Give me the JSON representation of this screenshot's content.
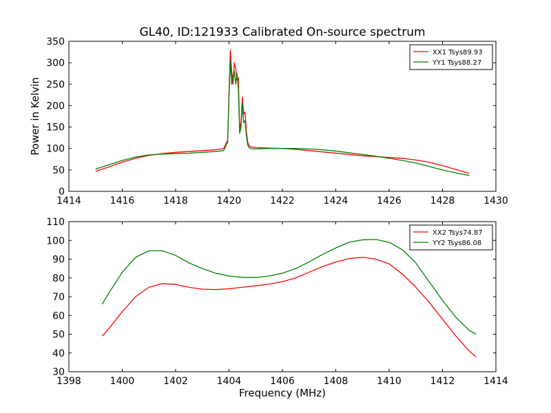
{
  "title": "GL40, ID:121933 Calibrated On-source spectrum",
  "chart_data": [
    {
      "type": "line",
      "title": "GL40, ID:121933 Calibrated On-source spectrum",
      "xlabel": "",
      "ylabel": "Power in Kelvin",
      "xlim": [
        1414,
        1430
      ],
      "ylim": [
        0,
        350
      ],
      "xticks": [
        1414,
        1416,
        1418,
        1420,
        1422,
        1424,
        1426,
        1428,
        1430
      ],
      "yticks": [
        0,
        50,
        100,
        150,
        200,
        250,
        300,
        350
      ],
      "legend_position": "top-right",
      "grid": false,
      "series": [
        {
          "name": "XX1 Tsys89.93",
          "color": "#ff0000",
          "x": [
            1415.0,
            1415.5,
            1416.0,
            1416.5,
            1417.0,
            1417.5,
            1418.0,
            1418.5,
            1419.0,
            1419.5,
            1419.8,
            1419.95,
            1420.0,
            1420.05,
            1420.1,
            1420.15,
            1420.2,
            1420.25,
            1420.3,
            1420.35,
            1420.4,
            1420.45,
            1420.5,
            1420.55,
            1420.6,
            1420.65,
            1420.7,
            1420.75,
            1420.8,
            1420.9,
            1421.0,
            1421.5,
            1422.0,
            1422.5,
            1423.0,
            1423.5,
            1424.0,
            1424.5,
            1425.0,
            1425.5,
            1426.0,
            1426.5,
            1427.0,
            1427.5,
            1428.0,
            1428.5,
            1429.0
          ],
          "y": [
            47,
            57,
            68,
            77,
            84,
            88,
            91,
            93,
            95,
            97,
            100,
            120,
            230,
            330,
            280,
            250,
            300,
            285,
            260,
            265,
            145,
            160,
            220,
            180,
            185,
            140,
            115,
            107,
            104,
            103,
            102,
            101,
            100,
            98,
            95,
            92,
            89,
            86,
            83,
            81,
            79,
            77,
            73,
            68,
            60,
            51,
            42
          ]
        },
        {
          "name": "YY1 Tsys88.27",
          "color": "#008000",
          "x": [
            1415.0,
            1415.5,
            1416.0,
            1416.5,
            1417.0,
            1417.5,
            1418.0,
            1418.5,
            1419.0,
            1419.5,
            1419.8,
            1419.95,
            1420.0,
            1420.05,
            1420.1,
            1420.15,
            1420.2,
            1420.25,
            1420.3,
            1420.35,
            1420.4,
            1420.45,
            1420.5,
            1420.55,
            1420.6,
            1420.65,
            1420.7,
            1420.75,
            1420.8,
            1420.9,
            1421.0,
            1421.5,
            1422.0,
            1422.5,
            1423.0,
            1423.5,
            1424.0,
            1424.5,
            1425.0,
            1425.5,
            1426.0,
            1426.5,
            1427.0,
            1427.5,
            1428.0,
            1428.5,
            1429.0
          ],
          "y": [
            52,
            62,
            72,
            80,
            85,
            87,
            88,
            89,
            91,
            93,
            95,
            115,
            220,
            305,
            250,
            270,
            280,
            250,
            275,
            240,
            135,
            150,
            205,
            160,
            165,
            130,
            108,
            102,
            100,
            99,
            99,
            100,
            100,
            100,
            99,
            97,
            94,
            90,
            86,
            82,
            77,
            72,
            66,
            58,
            50,
            43,
            37
          ]
        }
      ]
    },
    {
      "type": "line",
      "title": "",
      "xlabel": "Frequency (MHz)",
      "ylabel": "",
      "xlim": [
        1398,
        1414
      ],
      "ylim": [
        30,
        110
      ],
      "xticks": [
        1398,
        1400,
        1402,
        1404,
        1406,
        1408,
        1410,
        1412,
        1414
      ],
      "yticks": [
        30,
        40,
        50,
        60,
        70,
        80,
        90,
        100,
        110
      ],
      "legend_position": "top-right",
      "grid": false,
      "series": [
        {
          "name": "XX2 Tsys74.87",
          "color": "#ff0000",
          "x": [
            1399.25,
            1399.5,
            1400.0,
            1400.5,
            1401.0,
            1401.5,
            1402.0,
            1402.5,
            1403.0,
            1403.5,
            1404.0,
            1404.5,
            1405.0,
            1405.5,
            1406.0,
            1406.5,
            1407.0,
            1407.5,
            1408.0,
            1408.5,
            1409.0,
            1409.5,
            1410.0,
            1410.5,
            1411.0,
            1411.5,
            1412.0,
            1412.5,
            1413.0,
            1413.25
          ],
          "y": [
            49,
            53,
            62,
            70,
            75,
            77,
            76.5,
            75,
            74,
            73.8,
            74.2,
            75,
            75.8,
            76.7,
            78,
            80,
            83,
            86,
            88.5,
            90.3,
            91,
            90,
            87.5,
            82,
            75,
            67,
            58,
            49,
            41,
            38
          ]
        },
        {
          "name": "YY2 Tsys86.08",
          "color": "#008000",
          "x": [
            1399.25,
            1399.5,
            1400.0,
            1400.5,
            1401.0,
            1401.5,
            1402.0,
            1402.5,
            1403.0,
            1403.5,
            1404.0,
            1404.5,
            1405.0,
            1405.5,
            1406.0,
            1406.5,
            1407.0,
            1407.5,
            1408.0,
            1408.5,
            1409.0,
            1409.5,
            1410.0,
            1410.5,
            1411.0,
            1411.5,
            1412.0,
            1412.5,
            1413.0,
            1413.25
          ],
          "y": [
            66,
            72,
            83,
            91,
            94.5,
            94.5,
            92,
            88,
            85,
            82.5,
            81,
            80.3,
            80.2,
            81,
            82.5,
            85,
            88.5,
            92.5,
            96,
            99,
            100.3,
            100.5,
            99,
            95,
            88,
            78,
            68,
            59,
            52,
            50
          ]
        }
      ]
    }
  ]
}
